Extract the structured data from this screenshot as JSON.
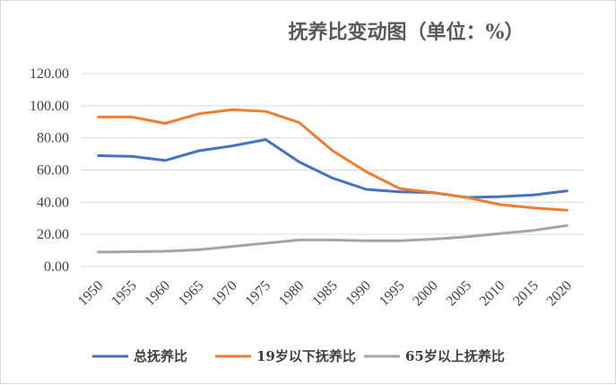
{
  "chart_data": {
    "type": "line",
    "title": "抚养比变动图（单位：%）",
    "x": [
      "1950",
      "1955",
      "1960",
      "1965",
      "1970",
      "1975",
      "1980",
      "1985",
      "1990",
      "1995",
      "2000",
      "2005",
      "2010",
      "2015",
      "2020"
    ],
    "ylim": [
      0,
      120
    ],
    "yticks": [
      "0.00",
      "20.00",
      "40.00",
      "60.00",
      "80.00",
      "100.00",
      "120.00"
    ],
    "grid": true,
    "legend": "bottom",
    "series": [
      {
        "name": "总抚养比",
        "color": "#4472c4",
        "values": [
          69,
          68.5,
          66,
          72,
          75,
          79,
          65,
          55,
          48,
          46.5,
          46,
          43,
          43.5,
          44.5,
          47
        ]
      },
      {
        "name": "19岁以下抚养比",
        "color": "#ed7d31",
        "values": [
          93,
          93,
          89,
          95,
          97.5,
          96.5,
          89.5,
          72,
          59,
          48.5,
          46,
          43,
          38.5,
          36.5,
          35
        ]
      },
      {
        "name": "65岁以上抚养比",
        "color": "#a5a5a5",
        "values": [
          9,
          9.2,
          9.5,
          10.5,
          12.5,
          14.5,
          16.5,
          16.5,
          16,
          16,
          17,
          18.5,
          20.5,
          22.5,
          25.5
        ]
      }
    ]
  }
}
